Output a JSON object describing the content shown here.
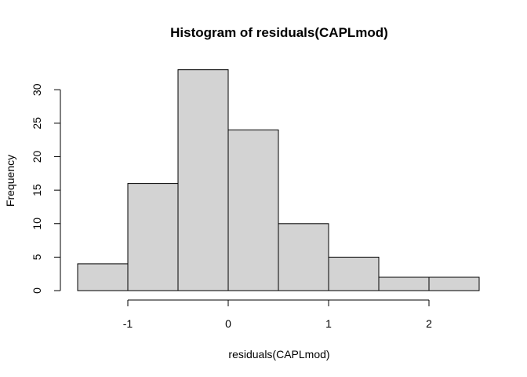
{
  "chart_data": {
    "type": "bar",
    "title": "Histogram of residuals(CAPLmod)",
    "xlabel": "residuals(CAPLmod)",
    "ylabel": "Frequency",
    "bins": [
      {
        "start": -1.5,
        "end": -1.0,
        "count": 4
      },
      {
        "start": -1.0,
        "end": -0.5,
        "count": 16
      },
      {
        "start": -0.5,
        "end": 0.0,
        "count": 33
      },
      {
        "start": 0.0,
        "end": 0.5,
        "count": 24
      },
      {
        "start": 0.5,
        "end": 1.0,
        "count": 10
      },
      {
        "start": 1.0,
        "end": 1.5,
        "count": 5
      },
      {
        "start": 1.5,
        "end": 2.0,
        "count": 2
      },
      {
        "start": 2.0,
        "end": 2.5,
        "count": 2
      }
    ],
    "x_ticks": [
      -1,
      0,
      1,
      2
    ],
    "x_tick_labels": [
      "-1",
      "0",
      "1",
      "2"
    ],
    "y_ticks": [
      0,
      5,
      10,
      15,
      20,
      25,
      30
    ],
    "y_tick_labels": [
      "0",
      "5",
      "10",
      "15",
      "20",
      "25",
      "30"
    ],
    "xlim": [
      -1.5,
      2.5
    ],
    "ylim": [
      0,
      33
    ],
    "grid": false,
    "colors": {
      "bar_fill": "#d3d3d3",
      "bar_stroke": "#000000"
    }
  }
}
